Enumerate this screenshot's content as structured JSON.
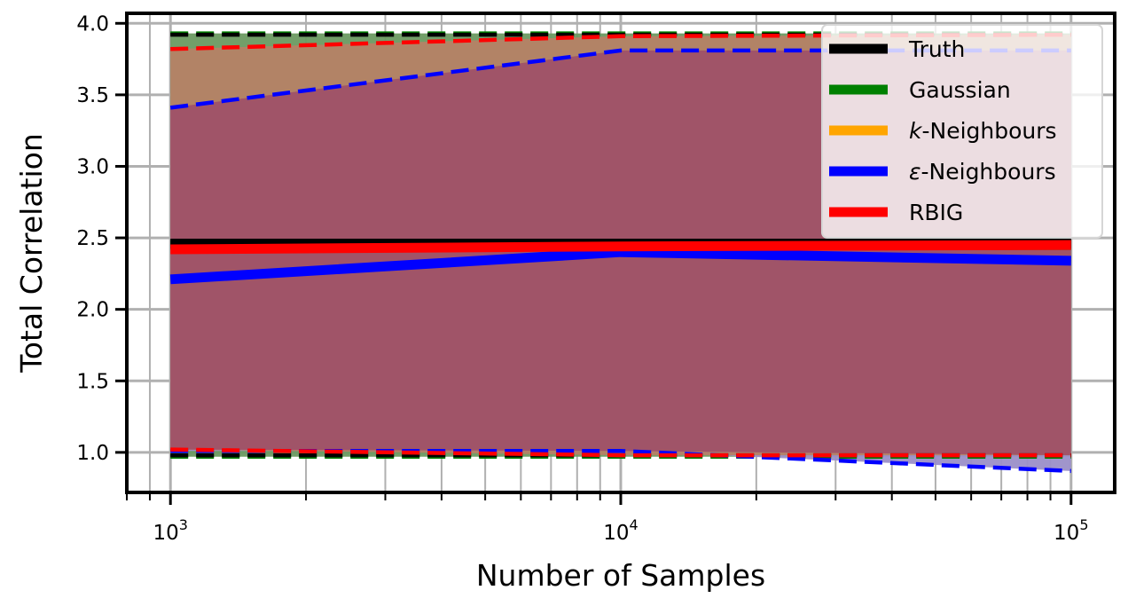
{
  "chart_data": {
    "type": "line",
    "xlabel": "Number of Samples",
    "ylabel": "Total Correlation",
    "x_scale": "log",
    "xlim": [
      800,
      125000
    ],
    "ylim": [
      0.72,
      4.07
    ],
    "grid": true,
    "legend_position": "top-right",
    "x_ticks": [
      1000,
      10000,
      100000
    ],
    "x_tick_labels": [
      {
        "base": "10",
        "exp": "3"
      },
      {
        "base": "10",
        "exp": "4"
      },
      {
        "base": "10",
        "exp": "5"
      }
    ],
    "y_ticks": [
      1.0,
      1.5,
      2.0,
      2.5,
      3.0,
      3.5,
      4.0
    ],
    "y_tick_labels": [
      "1.0",
      "1.5",
      "2.0",
      "2.5",
      "3.0",
      "3.5",
      "4.0"
    ],
    "x": [
      1000,
      10000,
      100000
    ],
    "series": [
      {
        "name": "Truth",
        "color": "#000000",
        "values": [
          2.46,
          2.46,
          2.46
        ],
        "lower": [
          0.98,
          0.98,
          0.98
        ],
        "upper": [
          3.92,
          3.92,
          3.92
        ],
        "fill": null
      },
      {
        "name": "Gaussian",
        "color": "#008000",
        "values": [
          2.45,
          2.45,
          2.45
        ],
        "lower": [
          0.97,
          0.97,
          0.97
        ],
        "upper": [
          3.93,
          3.93,
          3.93
        ],
        "fill": "#6a9a61"
      },
      {
        "name": "$k$-Neighbours",
        "legend": {
          "italic": "k",
          "rest": "-Neighbours"
        },
        "color": "#ffa500",
        "values": null,
        "lower": null,
        "upper": null,
        "fill": null
      },
      {
        "name": "$\\epsilon$-Neighbours",
        "legend": {
          "italic": "ε",
          "rest": "-Neighbours"
        },
        "color": "#0000ff",
        "values": [
          2.21,
          2.4,
          2.34
        ],
        "lower": [
          1.01,
          1.01,
          0.87
        ],
        "upper": [
          3.41,
          3.81,
          3.81
        ],
        "fill": "#9b8fc8"
      },
      {
        "name": "RBIG",
        "color": "#ff0000",
        "values": [
          2.42,
          2.44,
          2.45
        ],
        "lower": [
          1.02,
          0.98,
          0.98
        ],
        "upper": [
          3.82,
          3.91,
          3.92
        ],
        "fill": "#b58266"
      }
    ],
    "overlap_fill_color": "#a05468"
  }
}
